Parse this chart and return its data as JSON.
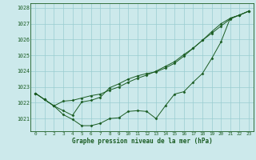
{
  "title": "Graphe pression niveau de la mer (hPa)",
  "background_color": "#cce9eb",
  "grid_color": "#99cdd0",
  "line_color": "#1a5c22",
  "x_ticks": [
    0,
    1,
    2,
    3,
    4,
    5,
    6,
    7,
    8,
    9,
    10,
    11,
    12,
    13,
    14,
    15,
    16,
    17,
    18,
    19,
    20,
    21,
    22,
    23
  ],
  "ylim": [
    1020.2,
    1028.3
  ],
  "yticks": [
    1021,
    1022,
    1023,
    1024,
    1025,
    1026,
    1027,
    1028
  ],
  "series1": [
    1022.6,
    1022.2,
    1021.8,
    1021.25,
    1020.95,
    1020.55,
    1020.55,
    1020.7,
    1021.0,
    1021.05,
    1021.45,
    1021.5,
    1021.45,
    1021.0,
    1021.8,
    1022.55,
    1022.7,
    1023.3,
    1023.85,
    1024.8,
    1025.85,
    1027.35,
    1027.55,
    1027.8
  ],
  "series2": [
    1022.6,
    1022.2,
    1021.8,
    1022.1,
    1022.15,
    1022.3,
    1022.45,
    1022.55,
    1022.8,
    1023.0,
    1023.3,
    1023.55,
    1023.75,
    1024.0,
    1024.3,
    1024.6,
    1025.05,
    1025.45,
    1025.95,
    1026.4,
    1026.85,
    1027.3,
    1027.55,
    1027.8
  ],
  "series3": [
    1022.6,
    1022.2,
    1021.8,
    1021.5,
    1021.2,
    1022.05,
    1022.15,
    1022.35,
    1022.95,
    1023.2,
    1023.5,
    1023.7,
    1023.85,
    1023.95,
    1024.2,
    1024.5,
    1024.95,
    1025.45,
    1025.95,
    1026.5,
    1027.0,
    1027.35,
    1027.55,
    1027.8
  ]
}
